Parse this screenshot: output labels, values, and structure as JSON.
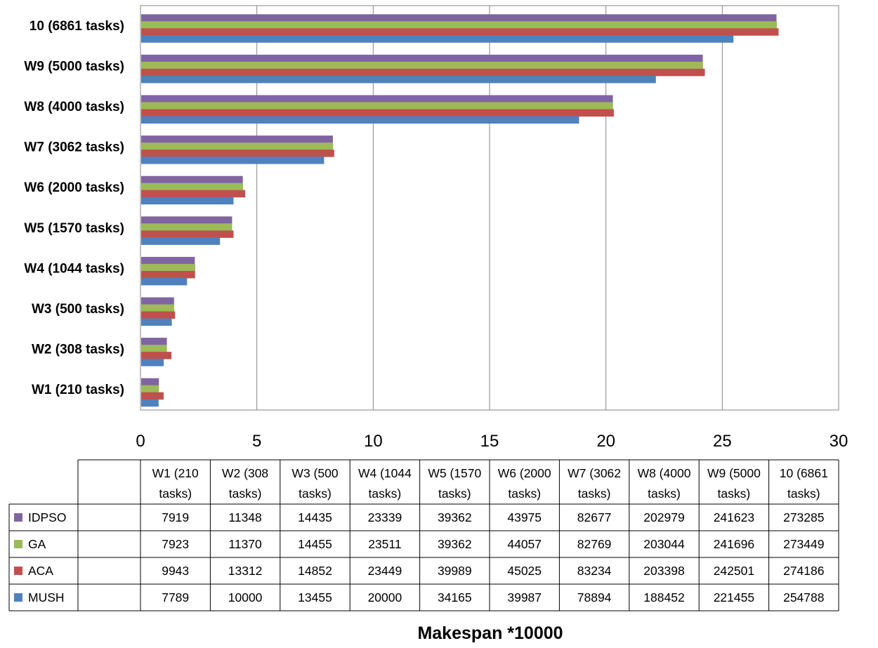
{
  "chart_data": {
    "type": "bar",
    "orientation": "horizontal",
    "title": "",
    "xlabel": "Makespan *10000",
    "ylabel": "",
    "xlim": [
      0,
      30
    ],
    "xticks": [
      "0",
      "5",
      "10",
      "15",
      "20",
      "25",
      "30"
    ],
    "grid": true,
    "categories": [
      "W1 (210 tasks)",
      "W2 (308 tasks)",
      "W3  (500 tasks)",
      "W4  (1044 tasks)",
      "W5  (1570 tasks)",
      "W6 (2000 tasks)",
      "W7 (3062 tasks)",
      "W8 (4000 tasks)",
      "W9 (5000 tasks)",
      "10 (6861 tasks)"
    ],
    "table_headers": [
      [
        "W1 (210",
        "tasks)"
      ],
      [
        "W2 (308",
        "tasks)"
      ],
      [
        "W3  (500",
        "tasks)"
      ],
      [
        "W4  (1044",
        "tasks)"
      ],
      [
        "W5  (1570",
        "tasks)"
      ],
      [
        "W6 (2000",
        "tasks)"
      ],
      [
        "W7 (3062",
        "tasks)"
      ],
      [
        "W8 (4000",
        "tasks)"
      ],
      [
        "W9 (5000",
        "tasks)"
      ],
      [
        "10 (6861",
        "tasks)"
      ]
    ],
    "series": [
      {
        "name": "IDPSO",
        "color": "#8064a2",
        "values": [
          7919,
          11348,
          14435,
          23339,
          39362,
          43975,
          82677,
          202979,
          241623,
          273285
        ]
      },
      {
        "name": "GA",
        "color": "#9bbb59",
        "values": [
          7923,
          11370,
          14455,
          23511,
          39362,
          44057,
          82769,
          203044,
          241696,
          273449
        ]
      },
      {
        "name": "ACA",
        "color": "#c0504d",
        "values": [
          9943,
          13312,
          14852,
          23449,
          39989,
          45025,
          83234,
          203398,
          242501,
          274186
        ]
      },
      {
        "name": "MUSH",
        "color": "#4f81bd",
        "values": [
          7789,
          10000,
          13455,
          20000,
          34165,
          39987,
          78894,
          188452,
          221455,
          254788
        ]
      }
    ],
    "value_scale": 10000,
    "legend": "data-table-left"
  }
}
